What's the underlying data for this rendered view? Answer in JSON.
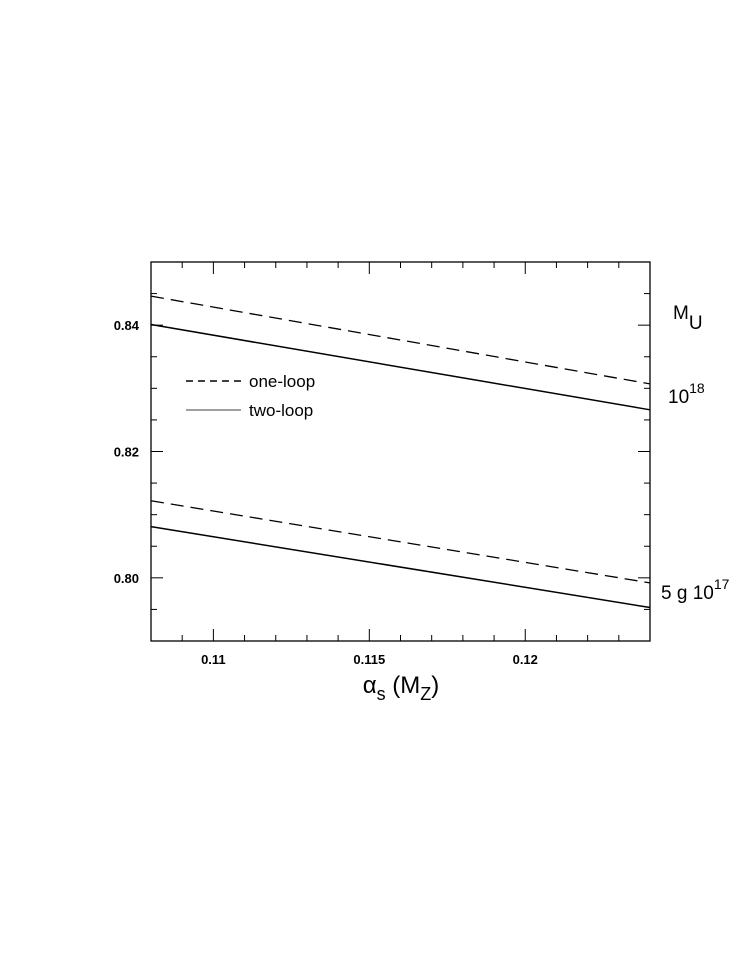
{
  "chart_data": {
    "type": "line",
    "title": "",
    "xlabel": {
      "main": "α",
      "sub": "s",
      "rest": " (M",
      "rest_sub": "Z",
      "close": ")"
    },
    "ylabel": "",
    "xlim": [
      0.108,
      0.124
    ],
    "ylim": [
      0.79,
      0.85
    ],
    "x_ticks": [
      0.11,
      0.115,
      0.12
    ],
    "x_tick_labels": [
      "0.11",
      "0.115",
      "0.12"
    ],
    "y_ticks": [
      0.8,
      0.82,
      0.84
    ],
    "y_tick_labels": [
      "0.80",
      "0.82",
      "0.84"
    ],
    "grid": false,
    "legend": {
      "placement": "upper-left",
      "entries": [
        {
          "label": "one-loop",
          "style": "dashed"
        },
        {
          "label": "two-loop",
          "style": "solid"
        }
      ]
    },
    "side_labels": {
      "header": {
        "text": "M",
        "sub": "U"
      },
      "upper": {
        "base": "10",
        "exp": "18"
      },
      "lower": {
        "base": "5 g 10",
        "exp": "17"
      }
    },
    "series": [
      {
        "group": "upper",
        "style": "dashed",
        "x": [
          0.108,
          0.124
        ],
        "y": [
          0.8446,
          0.8307
        ]
      },
      {
        "group": "upper",
        "style": "solid",
        "x": [
          0.108,
          0.124
        ],
        "y": [
          0.8401,
          0.8266
        ]
      },
      {
        "group": "lower",
        "style": "dashed",
        "x": [
          0.108,
          0.124
        ],
        "y": [
          0.8122,
          0.7992
        ]
      },
      {
        "group": "lower",
        "style": "solid",
        "x": [
          0.108,
          0.124
        ],
        "y": [
          0.8081,
          0.7953
        ]
      }
    ]
  },
  "colors": {
    "line": "#000000",
    "background": "#ffffff"
  }
}
